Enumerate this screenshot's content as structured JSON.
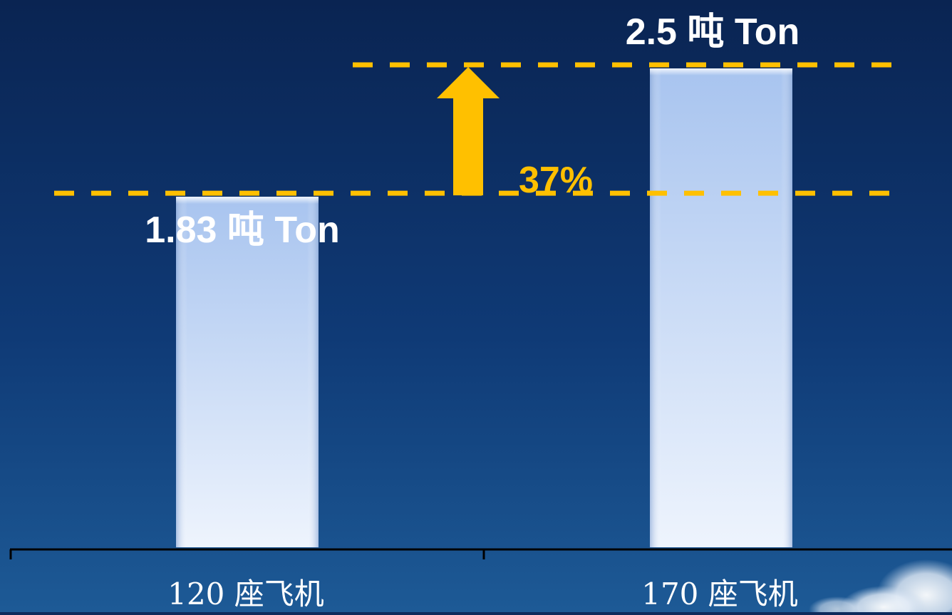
{
  "chart_data": {
    "type": "bar",
    "categories": [
      "120 座飞机",
      "170 座飞机"
    ],
    "values": [
      1.83,
      2.5
    ],
    "data_labels": [
      "1.83 吨 Ton",
      "2.5 吨 Ton"
    ],
    "ylim": [
      0,
      2.5
    ],
    "grid": false,
    "annotation": {
      "text": "37%",
      "from_value": 1.83,
      "to_value": 2.5,
      "color": "#FFC000"
    }
  },
  "colors": {
    "sky_top": "#0a2452",
    "sky_bottom": "#1d5a96",
    "bar_top": "#a8c4ef",
    "bar_bottom": "#eef4fd",
    "guide_line": "#FFC000",
    "label_text": "#ffffff",
    "axis": "#000000"
  }
}
